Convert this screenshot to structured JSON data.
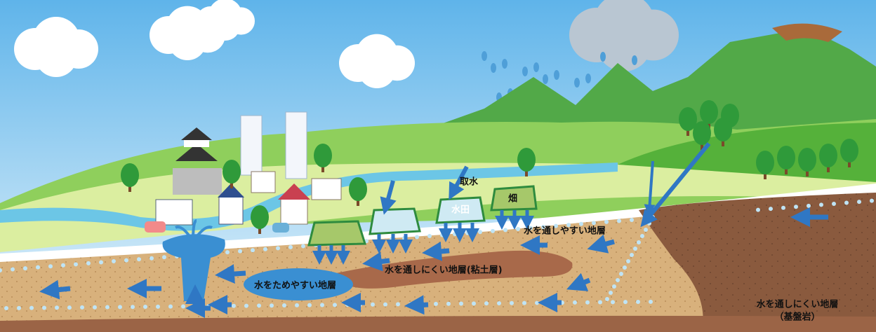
{
  "labels": {
    "intake": "取水",
    "paddy": "水田",
    "field": "畑",
    "permeable_layer": "水を通しやすい地層",
    "clay_layer": "水を通しにくい地層(粘土層)",
    "aquifer": "水をためやすい地層",
    "bedrock": "水を通しにくい地層",
    "bedrock_note": "（基盤岩）"
  }
}
